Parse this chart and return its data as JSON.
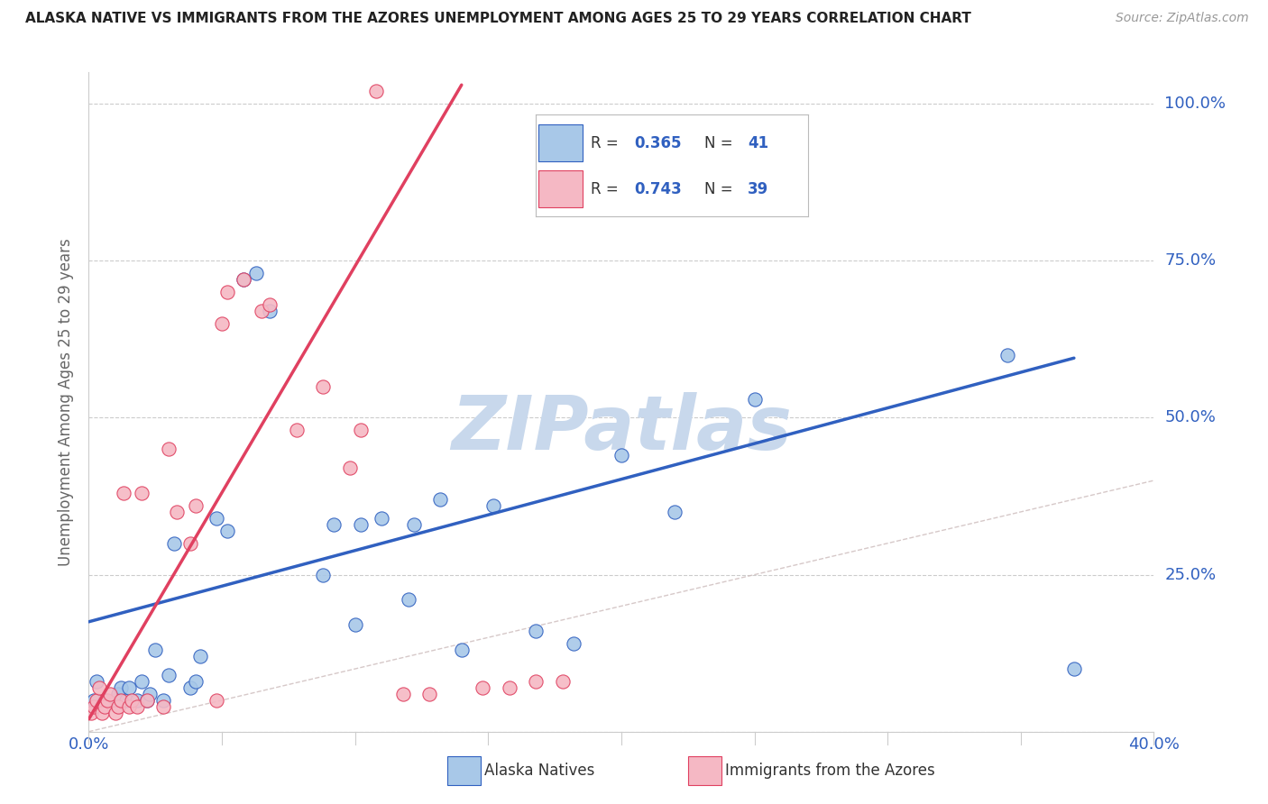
{
  "title": "ALASKA NATIVE VS IMMIGRANTS FROM THE AZORES UNEMPLOYMENT AMONG AGES 25 TO 29 YEARS CORRELATION CHART",
  "source": "Source: ZipAtlas.com",
  "ylabel": "Unemployment Among Ages 25 to 29 years",
  "legend_labels": [
    "Alaska Natives",
    "Immigrants from the Azores"
  ],
  "blue_color": "#A8C8E8",
  "pink_color": "#F5B8C4",
  "blue_line_color": "#3060C0",
  "pink_line_color": "#E04060",
  "diagonal_line_color": "#CCBBBB",
  "background_color": "#FFFFFF",
  "watermark_color": "#C8D8EC",
  "grid_color": "#CCCCCC",
  "xmin": 0.0,
  "xmax": 0.4,
  "ymin": 0.0,
  "ymax": 1.05,
  "ytick_positions": [
    0.0,
    0.25,
    0.5,
    0.75,
    1.0
  ],
  "ytick_labels": [
    "",
    "25.0%",
    "50.0%",
    "75.0%",
    "100.0%"
  ],
  "xtick_left_label": "0.0%",
  "xtick_right_label": "40.0%",
  "blue_scatter_x": [
    0.002,
    0.003,
    0.006,
    0.01,
    0.011,
    0.012,
    0.014,
    0.015,
    0.018,
    0.02,
    0.022,
    0.023,
    0.025,
    0.028,
    0.03,
    0.032,
    0.038,
    0.04,
    0.042,
    0.048,
    0.052,
    0.058,
    0.063,
    0.068,
    0.088,
    0.092,
    0.1,
    0.102,
    0.11,
    0.12,
    0.122,
    0.132,
    0.14,
    0.152,
    0.168,
    0.182,
    0.2,
    0.22,
    0.25,
    0.345,
    0.37
  ],
  "blue_scatter_y": [
    0.05,
    0.08,
    0.05,
    0.05,
    0.06,
    0.07,
    0.05,
    0.07,
    0.05,
    0.08,
    0.05,
    0.06,
    0.13,
    0.05,
    0.09,
    0.3,
    0.07,
    0.08,
    0.12,
    0.34,
    0.32,
    0.72,
    0.73,
    0.67,
    0.25,
    0.33,
    0.17,
    0.33,
    0.34,
    0.21,
    0.33,
    0.37,
    0.13,
    0.36,
    0.16,
    0.14,
    0.44,
    0.35,
    0.53,
    0.6,
    0.1
  ],
  "pink_scatter_x": [
    0.001,
    0.002,
    0.003,
    0.004,
    0.005,
    0.006,
    0.007,
    0.008,
    0.01,
    0.011,
    0.012,
    0.013,
    0.015,
    0.016,
    0.018,
    0.02,
    0.022,
    0.028,
    0.03,
    0.033,
    0.038,
    0.04,
    0.048,
    0.05,
    0.052,
    0.058,
    0.065,
    0.068,
    0.078,
    0.088,
    0.098,
    0.102,
    0.108,
    0.118,
    0.128,
    0.148,
    0.158,
    0.168,
    0.178
  ],
  "pink_scatter_y": [
    0.03,
    0.04,
    0.05,
    0.07,
    0.03,
    0.04,
    0.05,
    0.06,
    0.03,
    0.04,
    0.05,
    0.38,
    0.04,
    0.05,
    0.04,
    0.38,
    0.05,
    0.04,
    0.45,
    0.35,
    0.3,
    0.36,
    0.05,
    0.65,
    0.7,
    0.72,
    0.67,
    0.68,
    0.48,
    0.55,
    0.42,
    0.48,
    1.02,
    0.06,
    0.06,
    0.07,
    0.07,
    0.08,
    0.08
  ],
  "blue_line_x": [
    0.0,
    0.37
  ],
  "blue_line_y": [
    0.175,
    0.595
  ],
  "pink_line_x": [
    0.0,
    0.14
  ],
  "pink_line_y": [
    0.02,
    1.03
  ],
  "diag_line_x": [
    0.0,
    0.4
  ],
  "diag_line_y": [
    0.0,
    0.4
  ]
}
